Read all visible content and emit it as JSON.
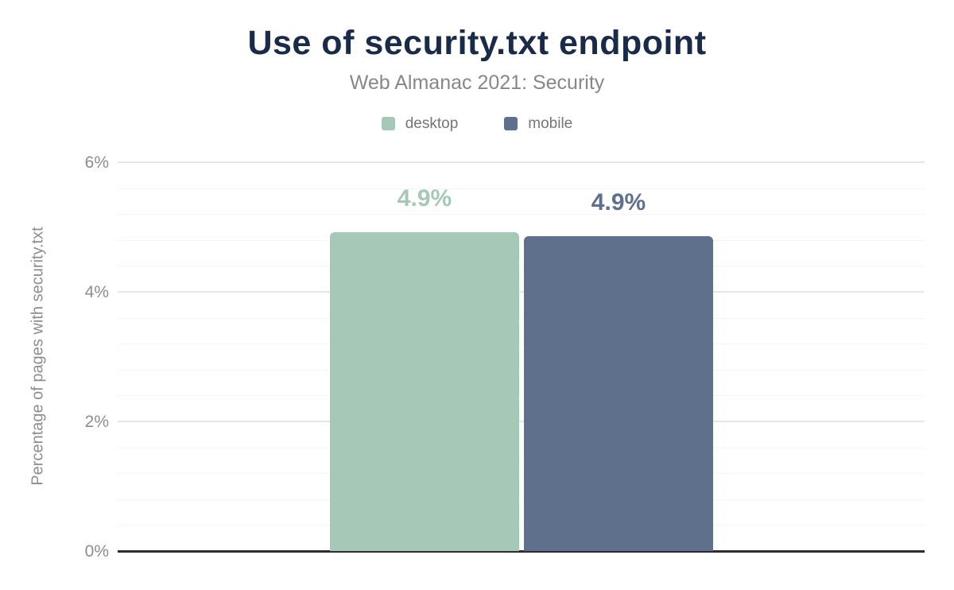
{
  "header": {
    "title": "Use of security.txt endpoint",
    "subtitle": "Web Almanac 2021: Security"
  },
  "chart_data": {
    "type": "bar",
    "title": "Use of security.txt endpoint",
    "subtitle": "Web Almanac 2021: Security",
    "xlabel": "",
    "ylabel": "Percentage of pages with security.txt",
    "ylim": [
      0,
      6
    ],
    "grid": true,
    "minor_grid_step": 0.4,
    "legend_position": "top",
    "y_ticks": [
      {
        "value": 0,
        "label": "0%"
      },
      {
        "value": 2,
        "label": "2%"
      },
      {
        "value": 4,
        "label": "4%"
      },
      {
        "value": 6,
        "label": "6%"
      }
    ],
    "categories": [
      "desktop",
      "mobile"
    ],
    "series": [
      {
        "name": "desktop",
        "value": 4.92,
        "label": "4.9%",
        "color": "#a6c8b6"
      },
      {
        "name": "mobile",
        "value": 4.86,
        "label": "4.9%",
        "color": "#5f708c"
      }
    ]
  },
  "colors": {
    "title": "#1a2b49",
    "subtitle": "#85878a",
    "axis_text": "#8a8d91",
    "legend_text": "#757575",
    "axis_line": "#2d2d2d",
    "grid_major": "#e4e6e8",
    "grid_minor": "#f3f4f5",
    "background": "#ffffff"
  }
}
